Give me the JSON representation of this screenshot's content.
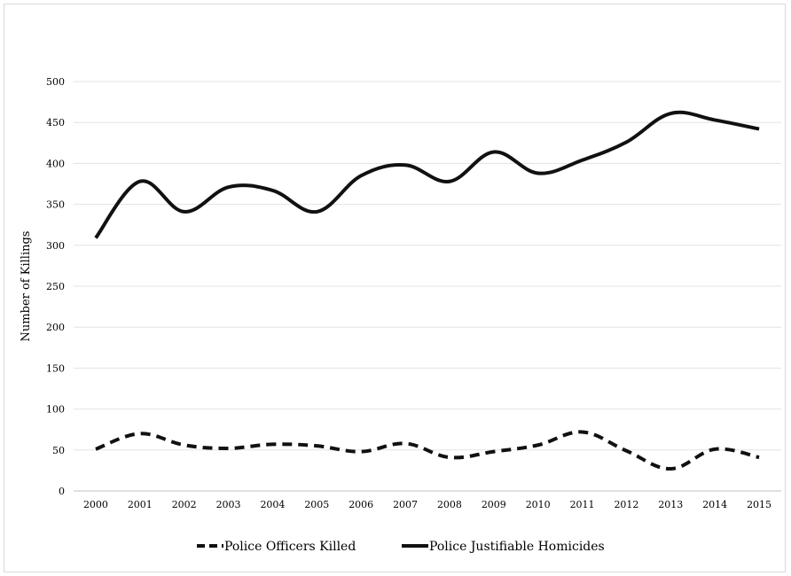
{
  "chart_data": {
    "type": "line",
    "title": "",
    "xlabel": "",
    "ylabel": "Number of Killings",
    "ylim": [
      0,
      500
    ],
    "yticks": [
      0,
      50,
      100,
      150,
      200,
      250,
      300,
      350,
      400,
      450,
      500
    ],
    "categories": [
      "2000",
      "2001",
      "2002",
      "2003",
      "2004",
      "2005",
      "2006",
      "2007",
      "2008",
      "2009",
      "2010",
      "2011",
      "2012",
      "2013",
      "2014",
      "2015"
    ],
    "grid": "horizontal",
    "legend_position": "bottom",
    "series": [
      {
        "name": "Police Officers Killed",
        "style": "dashed",
        "color": "#111111",
        "values": [
          51,
          70,
          56,
          52,
          57,
          55,
          48,
          58,
          41,
          48,
          56,
          72,
          49,
          27,
          51,
          41
        ]
      },
      {
        "name": "Police Justifiable Homicides",
        "style": "solid",
        "color": "#111111",
        "values": [
          309,
          378,
          341,
          371,
          367,
          341,
          385,
          398,
          378,
          414,
          388,
          404,
          426,
          461,
          453,
          442
        ]
      }
    ]
  }
}
